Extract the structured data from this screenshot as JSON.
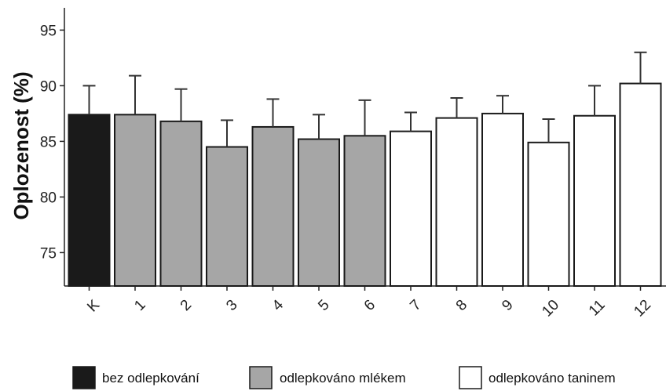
{
  "chart_data": {
    "type": "bar",
    "ylabel": "Oplozenost (%)",
    "xlabel": "",
    "ylim": [
      72,
      97
    ],
    "yticks": [
      75,
      80,
      85,
      90,
      95
    ],
    "grid": false,
    "legend_position": "bottom",
    "categories": [
      "K",
      "1",
      "2",
      "3",
      "4",
      "5",
      "6",
      "7",
      "8",
      "9",
      "10",
      "11",
      "12"
    ],
    "values": [
      87.4,
      87.4,
      86.8,
      84.5,
      86.3,
      85.2,
      85.5,
      85.9,
      87.1,
      87.5,
      84.9,
      87.3,
      90.2
    ],
    "error_upper": [
      90.0,
      90.9,
      89.7,
      86.9,
      88.8,
      87.4,
      88.7,
      87.6,
      88.9,
      89.1,
      87.0,
      90.0,
      93.0
    ],
    "groups": [
      "bez odlepkování",
      "odlepkováno mlékem",
      "odlepkováno mlékem",
      "odlepkováno mlékem",
      "odlepkováno mlékem",
      "odlepkováno mlékem",
      "odlepkováno mlékem",
      "odlepkováno taninem",
      "odlepkováno taninem",
      "odlepkováno taninem",
      "odlepkováno taninem",
      "odlepkováno taninem",
      "odlepkováno taninem"
    ],
    "legend": [
      {
        "label": "bez odlepkování",
        "color": "#1a1a1a"
      },
      {
        "label": "odlepkováno mlékem",
        "color": "#a6a6a6"
      },
      {
        "label": "odlepkováno taninem",
        "color": "#ffffff"
      }
    ]
  }
}
